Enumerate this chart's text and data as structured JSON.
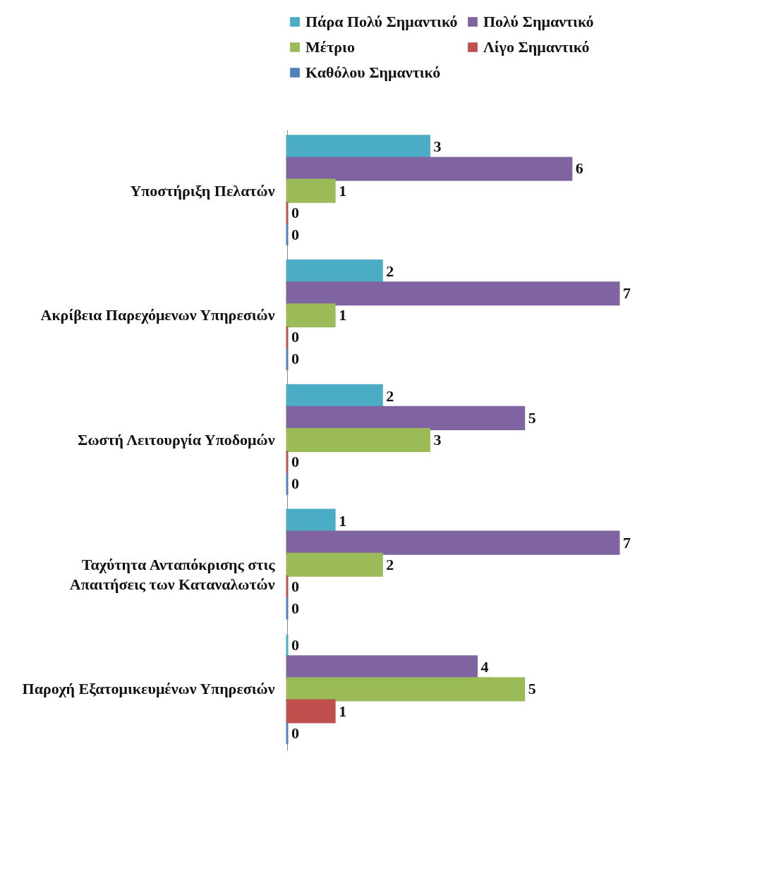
{
  "chart_data": {
    "type": "bar",
    "orientation": "horizontal",
    "data_labels": true,
    "legend": "top",
    "categories": [
      "Υποστήριξη Πελατών",
      "Ακρίβεια Παρεχόμενων Υπηρεσιών",
      "Σωστή Λειτουργία Υποδομών",
      "Ταχύτητα Ανταπόκρισης στις Απαιτήσεις των Καταναλωτών",
      "Παροχή Εξατομικευμένων Υπηρεσιών"
    ],
    "series": [
      {
        "name": "Πάρα Πολύ Σημαντικό",
        "color": "#4bacc6",
        "values": [
          3,
          2,
          2,
          1,
          0
        ]
      },
      {
        "name": "Πολύ Σημαντικό",
        "color": "#8064a2",
        "values": [
          6,
          7,
          5,
          7,
          4
        ]
      },
      {
        "name": "Μέτριο",
        "color": "#9bbb59",
        "values": [
          1,
          1,
          3,
          2,
          5
        ]
      },
      {
        "name": "Λίγο Σημαντικό",
        "color": "#c0504d",
        "values": [
          0,
          0,
          0,
          0,
          1
        ]
      },
      {
        "name": "Καθόλου Σημαντικό",
        "color": "#4f81bd",
        "values": [
          0,
          0,
          0,
          0,
          0
        ]
      }
    ]
  }
}
